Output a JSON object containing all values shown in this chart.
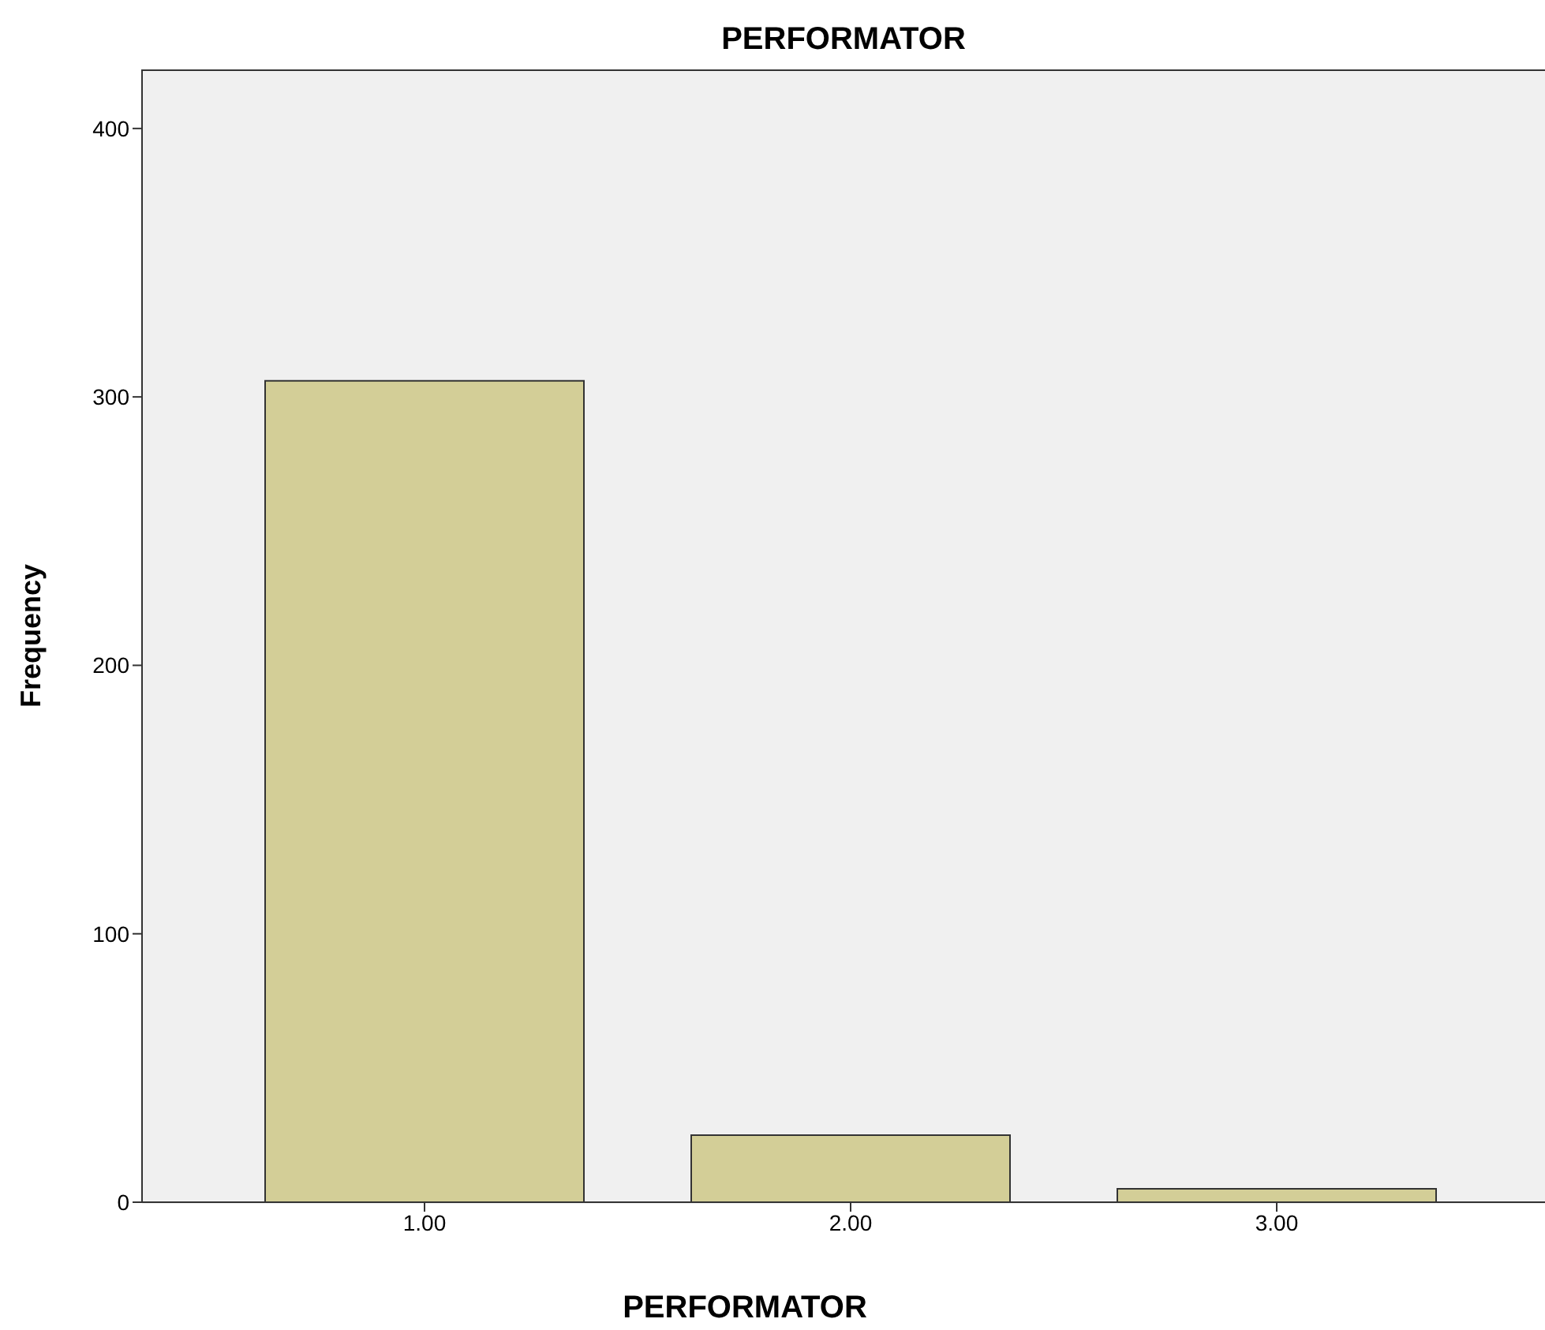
{
  "chart_data": {
    "type": "bar",
    "title": "PERFORMATOR",
    "xlabel": "PERFORMATOR",
    "ylabel": "Frequency",
    "categories": [
      "1.00",
      "2.00",
      "3.00"
    ],
    "values": [
      306,
      25,
      5
    ],
    "color": "#d3ce97",
    "ylim": [
      0,
      422
    ],
    "yticks": [
      0,
      100,
      200,
      300,
      400
    ],
    "grid": false
  }
}
